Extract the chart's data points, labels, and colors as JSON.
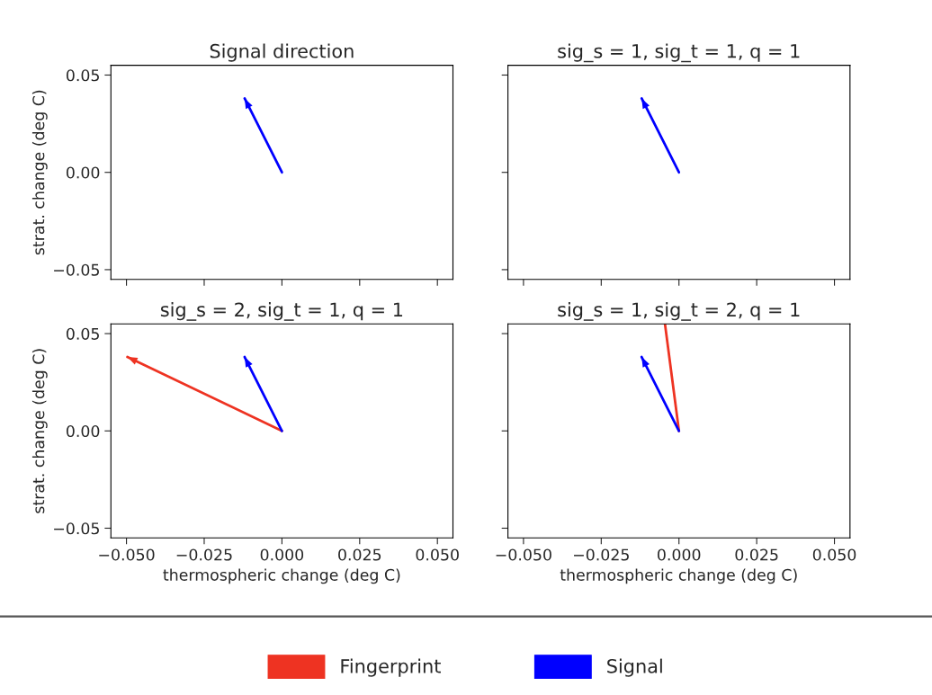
{
  "chart_data": [
    {
      "type": "line",
      "title": "Signal direction",
      "ylabel": "strat. change (deg C)",
      "xlim": [
        -0.055,
        0.055
      ],
      "ylim": [
        -0.055,
        0.055
      ],
      "xticks": [
        -0.05,
        -0.025,
        0.0,
        0.025,
        0.05
      ],
      "yticks": [
        {
          "value": -0.05,
          "label": "−0.05"
        },
        {
          "value": 0.0,
          "label": "0.00"
        },
        {
          "value": 0.05,
          "label": "0.05"
        }
      ],
      "tick_labels": "y",
      "series": [
        {
          "color": "#0000ff",
          "x": [
            0.0,
            -0.012
          ],
          "values": [
            0.0,
            0.038
          ]
        }
      ]
    },
    {
      "type": "line",
      "title": "sig_s = 1, sig_t = 1, q = 1",
      "xlim": [
        -0.055,
        0.055
      ],
      "ylim": [
        -0.055,
        0.055
      ],
      "xticks": [
        -0.05,
        -0.025,
        0.0,
        0.025,
        0.05
      ],
      "yticks": [
        -0.05,
        0.0,
        0.05
      ],
      "tick_labels": false,
      "series": [
        {
          "color": "#0000ff",
          "x": [
            0.0,
            -0.012
          ],
          "values": [
            0.0,
            0.038
          ]
        }
      ]
    },
    {
      "type": "line",
      "title": "sig_s = 2, sig_t = 1, q = 1",
      "xlabel": "thermospheric change (deg C)",
      "ylabel": "strat. change (deg C)",
      "xlim": [
        -0.055,
        0.055
      ],
      "ylim": [
        -0.055,
        0.055
      ],
      "xticks": [
        {
          "value": -0.05,
          "label": "−0.050"
        },
        {
          "value": -0.025,
          "label": "−0.025"
        },
        {
          "value": 0.0,
          "label": "0.000"
        },
        {
          "value": 0.025,
          "label": "0.025"
        },
        {
          "value": 0.05,
          "label": "0.050"
        }
      ],
      "yticks": [
        {
          "value": -0.05,
          "label": "−0.05"
        },
        {
          "value": 0.0,
          "label": "0.00"
        },
        {
          "value": 0.05,
          "label": "0.05"
        }
      ],
      "legend": "bottom",
      "series": [
        {
          "name": "Fingerprint",
          "color": "#ee3322",
          "x": [
            0.0,
            -0.0497
          ],
          "values": [
            0.0,
            0.038
          ]
        },
        {
          "name": "Signal",
          "color": "#0000ff",
          "x": [
            0.0,
            -0.012
          ],
          "values": [
            0.0,
            0.038
          ]
        }
      ]
    },
    {
      "type": "line",
      "title": "sig_s = 1, sig_t = 2, q = 1",
      "xlabel": "thermospheric change (deg C)",
      "xlim": [
        -0.055,
        0.055
      ],
      "ylim": [
        -0.055,
        0.055
      ],
      "xticks": [
        {
          "value": -0.05,
          "label": "−0.050"
        },
        {
          "value": -0.025,
          "label": "−0.025"
        },
        {
          "value": 0.0,
          "label": "0.000"
        },
        {
          "value": 0.025,
          "label": "0.025"
        },
        {
          "value": 0.05,
          "label": "0.050"
        }
      ],
      "yticks": [
        -0.05,
        0.0,
        0.05
      ],
      "tick_labels": "x",
      "series": [
        {
          "color": "#ee3322",
          "x": [
            0.0,
            -0.0045
          ],
          "values": [
            0.0,
            0.055
          ]
        },
        {
          "color": "#0000ff",
          "x": [
            0.0,
            -0.012
          ],
          "values": [
            0.0,
            0.038
          ]
        }
      ]
    }
  ]
}
